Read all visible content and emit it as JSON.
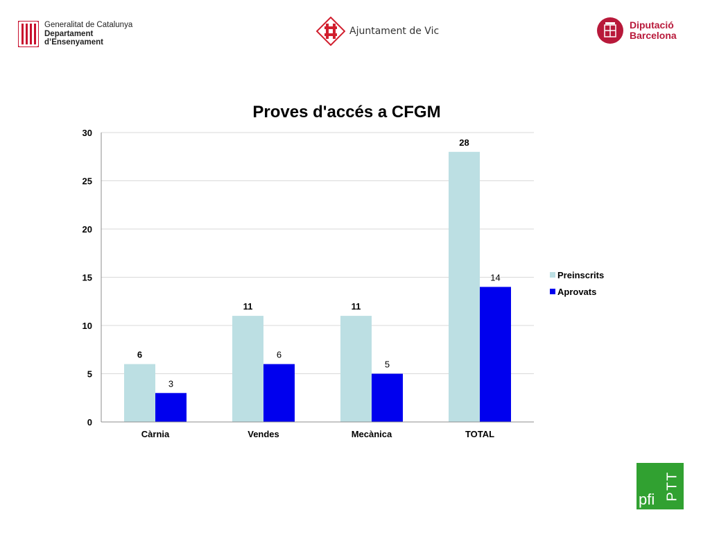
{
  "logos": {
    "gencat": {
      "line1": "Generalitat de Catalunya",
      "line2": "Departament",
      "line3": "d’Ensenyament"
    },
    "vic": {
      "text": "Ajuntament de Vic"
    },
    "diputacio": {
      "line1": "Diputació",
      "line2": "Barcelona"
    },
    "pfi": {
      "pfi": "pfi",
      "ptt": "PTT"
    }
  },
  "colors": {
    "preinscrits": "#bcdfe3",
    "aprovats": "#0000ee",
    "gencat_red": "#c8102e",
    "dipu_red": "#b8193a",
    "pfi_green": "#31a131"
  },
  "chart_data": {
    "type": "bar",
    "title": "Proves d'accés a CFGM",
    "categories": [
      "Càrnia",
      "Vendes",
      "Mecànica",
      "TOTAL"
    ],
    "series": [
      {
        "name": "Preinscrits",
        "values": [
          6,
          11,
          11,
          28
        ]
      },
      {
        "name": "Aprovats",
        "values": [
          3,
          6,
          5,
          14
        ]
      }
    ],
    "ylim": [
      0,
      30
    ],
    "yticks": [
      0,
      5,
      10,
      15,
      20,
      25,
      30
    ],
    "grid": true,
    "legend": "right"
  }
}
